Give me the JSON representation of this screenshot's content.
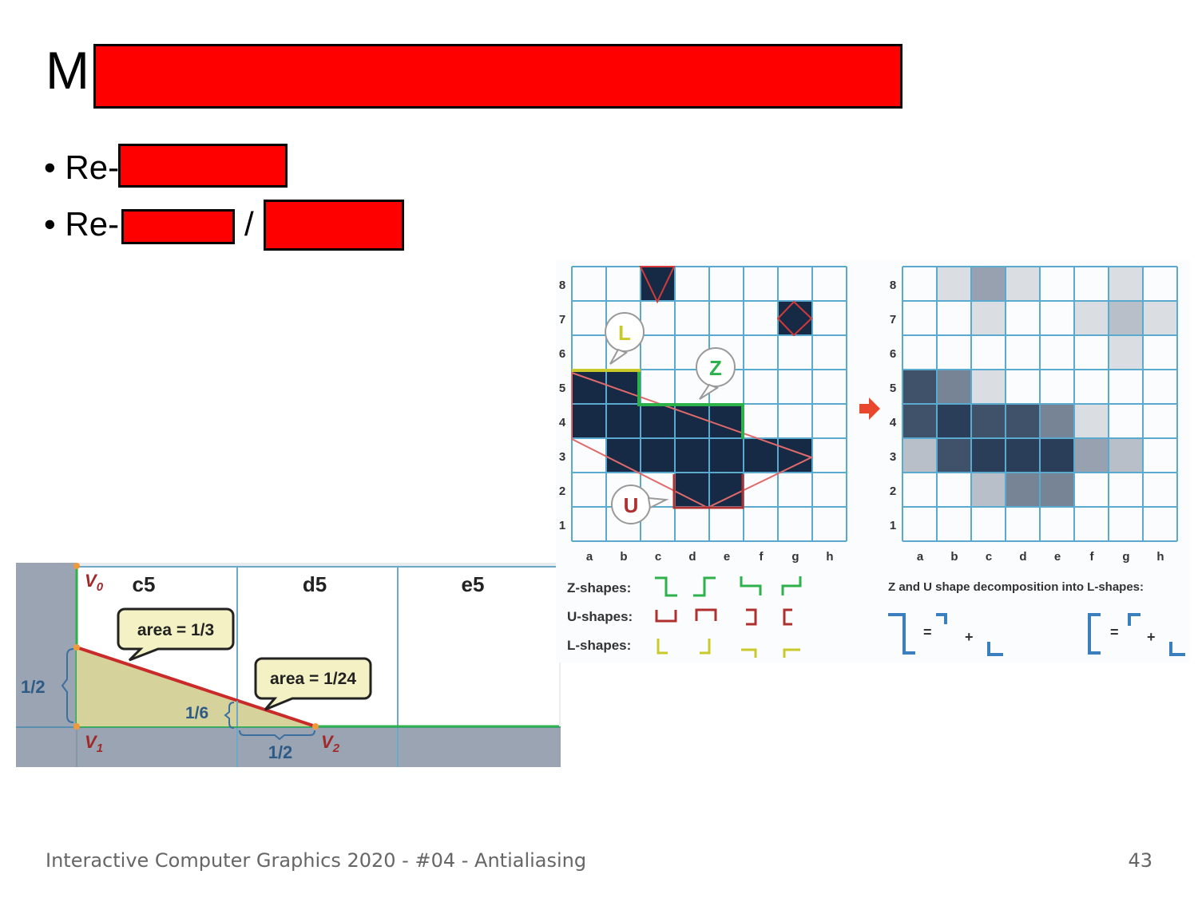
{
  "slide": {
    "title_visible": "M",
    "bullets": [
      {
        "prefix": "• Re-"
      },
      {
        "prefix": "• Re-",
        "separator": "/"
      }
    ]
  },
  "figure_left": {
    "columns": [
      "c5",
      "d5",
      "e5"
    ],
    "callout_1": "area = 1/3",
    "callout_2": "area = 1/24",
    "label_half_left": "1/2",
    "label_sixth": "1/6",
    "label_half_bottom": "1/2",
    "v0": "V",
    "v0_sub": "0",
    "v1": "V",
    "v1_sub": "1",
    "v2": "V",
    "v2_sub": "2"
  },
  "figure_right": {
    "rows": [
      "8",
      "7",
      "6",
      "5",
      "4",
      "3",
      "2",
      "1"
    ],
    "cols": [
      "a",
      "b",
      "c",
      "d",
      "e",
      "f",
      "g",
      "h"
    ],
    "bubble_l": "L",
    "bubble_z": "Z",
    "bubble_u": "U",
    "z_shapes_label": "Z-shapes:",
    "u_shapes_label": "U-shapes:",
    "l_shapes_label": "L-shapes:",
    "decomposition_caption": "Z and U shape decomposition into L-shapes:",
    "eq": "=",
    "plus": "+"
  },
  "footer": {
    "left": "Interactive Computer Graphics 2020 - #04 - Antialiasing",
    "page": "43"
  },
  "colors": {
    "redaction": "#ff0000",
    "pixel_dark": "#172a45",
    "grid_line": "#5aa9cf",
    "edge_red": "#d23a3a",
    "z_green": "#2db14b",
    "l_yellow": "#c9c92a"
  }
}
